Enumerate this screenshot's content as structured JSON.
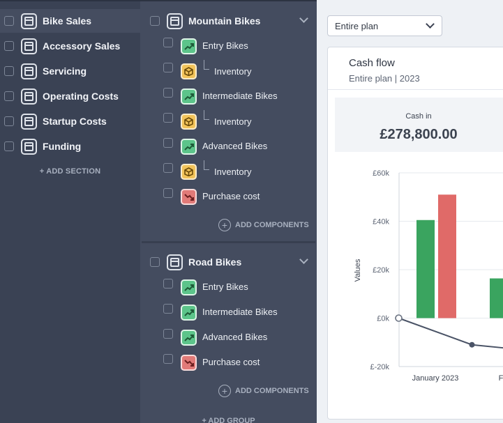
{
  "sidebar": {
    "sections": [
      {
        "label": "Bike Sales",
        "active": true
      },
      {
        "label": "Accessory Sales",
        "active": false
      },
      {
        "label": "Servicing",
        "active": false
      },
      {
        "label": "Operating Costs",
        "active": false
      },
      {
        "label": "Startup Costs",
        "active": false
      },
      {
        "label": "Funding",
        "active": false
      }
    ],
    "add_section_label": "+ ADD SECTION"
  },
  "groups": [
    {
      "title": "Mountain Bikes",
      "components": [
        {
          "label": "Entry Bikes",
          "kind": "revenue",
          "icon": "trend-up-icon"
        },
        {
          "label": "Inventory",
          "kind": "inventory",
          "icon": "box-icon",
          "child": true
        },
        {
          "label": "Intermediate Bikes",
          "kind": "revenue",
          "icon": "trend-up-icon"
        },
        {
          "label": "Inventory",
          "kind": "inventory",
          "icon": "box-icon",
          "child": true
        },
        {
          "label": "Advanced Bikes",
          "kind": "revenue",
          "icon": "trend-up-icon"
        },
        {
          "label": "Inventory",
          "kind": "inventory",
          "icon": "box-icon",
          "child": true
        },
        {
          "label": "Purchase cost",
          "kind": "cost",
          "icon": "trend-down-icon"
        }
      ],
      "add_components_label": "ADD COMPONENTS"
    },
    {
      "title": "Road Bikes",
      "components": [
        {
          "label": "Entry Bikes",
          "kind": "revenue",
          "icon": "trend-up-icon"
        },
        {
          "label": "Intermediate Bikes",
          "kind": "revenue",
          "icon": "trend-up-icon"
        },
        {
          "label": "Advanced Bikes",
          "kind": "revenue",
          "icon": "trend-up-icon"
        },
        {
          "label": "Purchase cost",
          "kind": "cost",
          "icon": "trend-down-icon"
        }
      ],
      "add_components_label": "ADD COMPONENTS"
    }
  ],
  "add_group_label": "+ ADD GROUP",
  "plan_select": {
    "value": "Entire plan"
  },
  "card": {
    "title": "Cash flow",
    "subtitle": "Entire plan | 2023",
    "stat_label": "Cash in",
    "stat_value": "£278,800.00"
  },
  "colors": {
    "cash_in": "#3aa45f",
    "cash_out": "#e06a68",
    "balance_line": "#4a5366"
  },
  "chart_data": {
    "type": "bar",
    "ylabel": "Values",
    "ylim": [
      -20000,
      60000
    ],
    "yticks": [
      "£-20k",
      "£0k",
      "£20k",
      "£40k",
      "£60k"
    ],
    "ytick_values": [
      -20000,
      0,
      20000,
      40000,
      60000
    ],
    "categories": [
      "January 2023",
      "Febru"
    ],
    "series": [
      {
        "name": "",
        "type": "bar",
        "color": "#3aa45f",
        "values": [
          40500,
          16400
        ]
      },
      {
        "name": "",
        "type": "bar",
        "color": "#e06a68",
        "values": [
          51000,
          null
        ]
      },
      {
        "name": "",
        "type": "line",
        "color": "#4a5366",
        "points": [
          [
            -0.5,
            0
          ],
          [
            0.5,
            -11000
          ],
          [
            1.0,
            -12500
          ]
        ]
      }
    ]
  }
}
